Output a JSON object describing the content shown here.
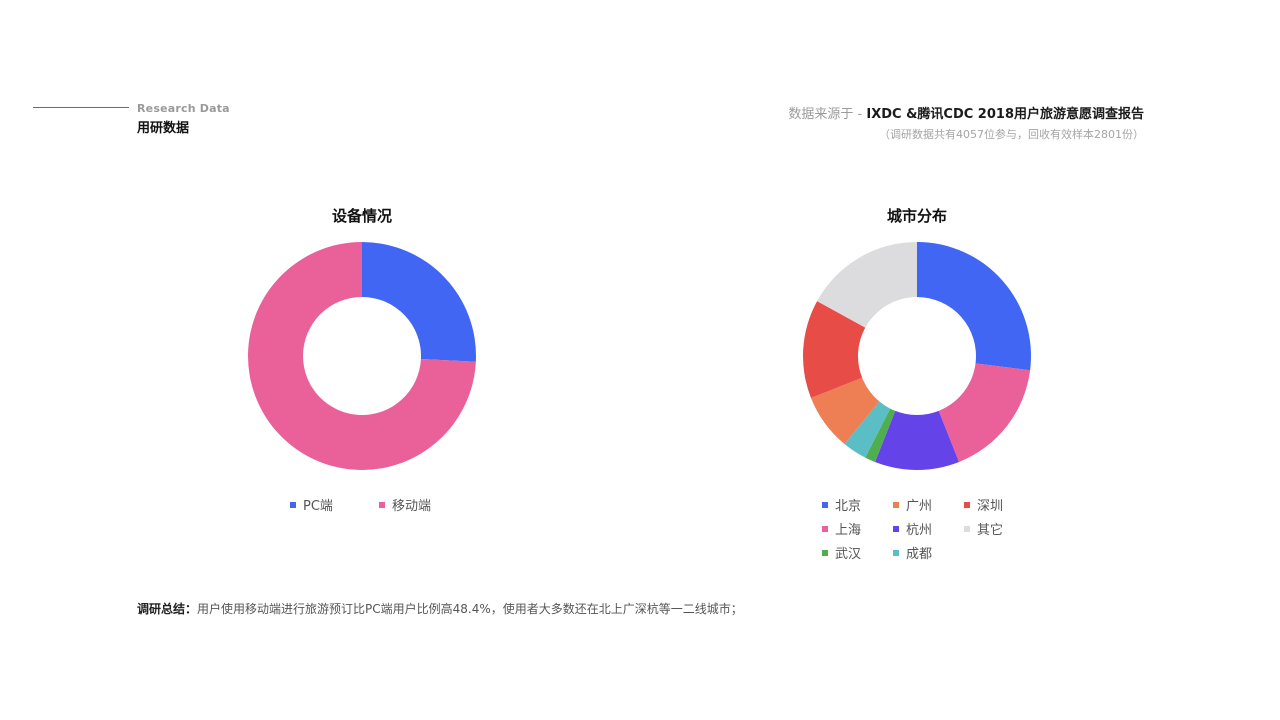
{
  "header": {
    "subtitle": "Research Data",
    "title": "用研数据",
    "line_color": "#e0374f"
  },
  "source": {
    "prefix": "数据来源于 - ",
    "main": "IXDC &腾讯CDC 2018用户旅游意愿调查报告",
    "note": "（调研数据共有4057位参与，回收有效样本2801份）"
  },
  "summary": {
    "label": "调研总结：",
    "text": "用户使用移动端进行旅游预订比PC端用户比例高48.4%，使用者大多数还在北上广深杭等一二线城市；"
  },
  "chart_data": [
    {
      "type": "pie",
      "title": "设备情况",
      "series": [
        {
          "name": "PC端",
          "value": 25.8,
          "color": "#4266f4"
        },
        {
          "name": "移动端",
          "value": 74.2,
          "color": "#ea6099"
        }
      ]
    },
    {
      "type": "pie",
      "title": "城市分布",
      "series": [
        {
          "name": "北京",
          "value": 27,
          "color": "#4266f4"
        },
        {
          "name": "上海",
          "value": 17,
          "color": "#ea6099"
        },
        {
          "name": "杭州",
          "value": 12,
          "color": "#6443e8"
        },
        {
          "name": "武汉",
          "value": 1.5,
          "color": "#4fae4f"
        },
        {
          "name": "成都",
          "value": 3.5,
          "color": "#5bbec4"
        },
        {
          "name": "广州",
          "value": 8,
          "color": "#ee7f55"
        },
        {
          "name": "深圳",
          "value": 14,
          "color": "#e84c47"
        },
        {
          "name": "其它",
          "value": 17,
          "color": "#dcdcde"
        }
      ]
    }
  ]
}
